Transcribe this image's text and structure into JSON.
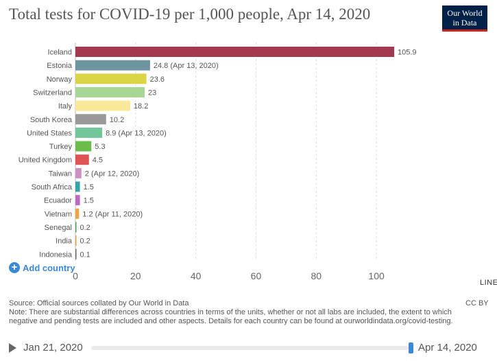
{
  "header": {
    "title": "Total tests for COVID-19 per 1,000 people, Apr 14, 2020",
    "logo_line1": "Our World",
    "logo_line2": "in Data"
  },
  "controls": {
    "add_country_label": "Add country",
    "line_link": "LINE"
  },
  "footer": {
    "source": "Source: Official sources collated by Our World in Data",
    "note": "Note: There are substantial differences across countries in terms of the units, whether or not all labs are included, the extent to which negative and pending tests are included and other aspects. Details for each country can be found at ourworldindata.org/covid-testing.",
    "license": "CC BY"
  },
  "timeline": {
    "start_date": "Jan 21, 2020",
    "end_date": "Apr 14, 2020",
    "position": 1.0
  },
  "chart_data": {
    "type": "bar",
    "orientation": "horizontal",
    "title": "Total tests for COVID-19 per 1,000 people, Apr 14, 2020",
    "xlim": [
      0,
      110
    ],
    "x_ticks": [
      0,
      20,
      40,
      60,
      80,
      100
    ],
    "grid": true,
    "categories": [
      "Iceland",
      "Estonia",
      "Norway",
      "Switzerland",
      "Italy",
      "South Korea",
      "United States",
      "Turkey",
      "United Kingdom",
      "Taiwan",
      "South Africa",
      "Ecuador",
      "Vietnam",
      "Senegal",
      "India",
      "Indonesia"
    ],
    "values": [
      105.9,
      24.8,
      23.6,
      23,
      18.2,
      10.2,
      8.9,
      5.3,
      4.5,
      2,
      1.5,
      1.5,
      1.2,
      0.2,
      0.2,
      0.1
    ],
    "value_labels": [
      "105.9",
      "24.8 (Apr 13, 2020)",
      "23.6",
      "23",
      "18.2",
      "10.2",
      "8.9 (Apr 13, 2020)",
      "5.3",
      "4.5",
      "2 (Apr 12, 2020)",
      "1.5",
      "1.5",
      "1.2 (Apr 11, 2020)",
      "0.2",
      "0.2",
      "0.1"
    ],
    "colors": [
      "#a2394f",
      "#6d949f",
      "#dbd444",
      "#a8d695",
      "#fbe99a",
      "#999999",
      "#73c59a",
      "#6bbd4b",
      "#e05353",
      "#cc90c5",
      "#34a3a5",
      "#bb69c5",
      "#f0a540",
      "#4aa45a",
      "#e0a03d",
      "#6a6a6a"
    ]
  }
}
